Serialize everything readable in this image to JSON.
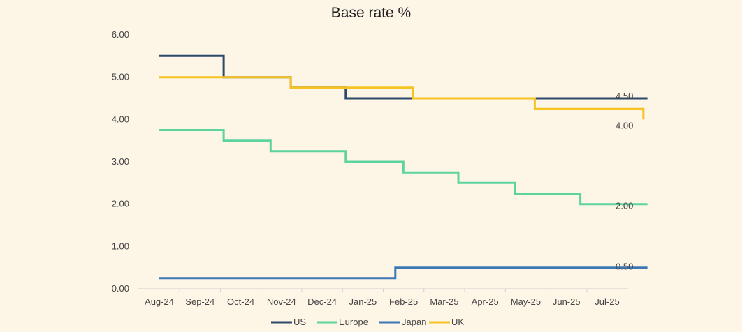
{
  "chart_data": {
    "type": "line",
    "step": true,
    "title": "Base rate %",
    "xlabel": "",
    "ylabel": "",
    "ylim": [
      0,
      6
    ],
    "yticks": [
      "0.00",
      "1.00",
      "2.00",
      "3.00",
      "4.00",
      "5.00",
      "6.00"
    ],
    "grid": false,
    "legend": "bottom",
    "categories": [
      "Aug-24",
      "Sep-24",
      "Oct-24",
      "Nov-24",
      "Dec-24",
      "Jan-25",
      "Feb-25",
      "Mar-25",
      "Apr-25",
      "May-25",
      "Jun-25",
      "Jul-25"
    ],
    "series": [
      {
        "name": "US",
        "color": "#2E4A6B",
        "changes": [
          [
            "2024-08-01",
            5.5
          ],
          [
            "2024-09-18",
            5.0
          ],
          [
            "2024-11-07",
            4.75
          ],
          [
            "2024-12-18",
            4.5
          ],
          [
            "2025-07-31",
            4.5
          ]
        ],
        "end_label": "4.50"
      },
      {
        "name": "Europe",
        "color": "#5DD39E",
        "changes": [
          [
            "2024-08-01",
            3.75
          ],
          [
            "2024-09-18",
            3.5
          ],
          [
            "2024-10-23",
            3.25
          ],
          [
            "2024-12-18",
            3.0
          ],
          [
            "2025-01-30",
            2.75
          ],
          [
            "2025-03-12",
            2.5
          ],
          [
            "2025-04-23",
            2.25
          ],
          [
            "2025-06-11",
            2.0
          ],
          [
            "2025-07-31",
            2.0
          ]
        ],
        "end_label": "2.00"
      },
      {
        "name": "Japan",
        "color": "#3C78B4",
        "changes": [
          [
            "2024-08-01",
            0.25
          ],
          [
            "2025-01-24",
            0.5
          ],
          [
            "2025-07-31",
            0.5
          ]
        ],
        "end_label": "0.50"
      },
      {
        "name": "UK",
        "color": "#F5C423",
        "changes": [
          [
            "2024-08-01",
            5.0
          ],
          [
            "2024-11-07",
            4.75
          ],
          [
            "2025-02-06",
            4.5
          ],
          [
            "2025-05-08",
            4.25
          ],
          [
            "2025-07-28",
            4.0
          ]
        ],
        "end_label": "4.00"
      }
    ]
  }
}
